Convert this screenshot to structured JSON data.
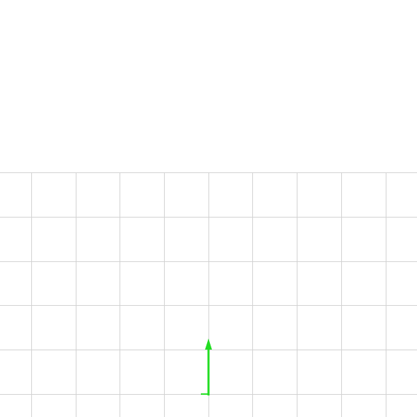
{
  "viewport": {
    "background_color": "#ffffff",
    "grid": {
      "visible": true,
      "line_color": "#d2d2d2"
    },
    "axes_gizmo": {
      "y_axis": {
        "color": "#22dd22",
        "icon": "arrow-up-icon"
      },
      "x_axis": {
        "color": "#22dd22",
        "icon": "axis-tick-icon"
      }
    }
  }
}
